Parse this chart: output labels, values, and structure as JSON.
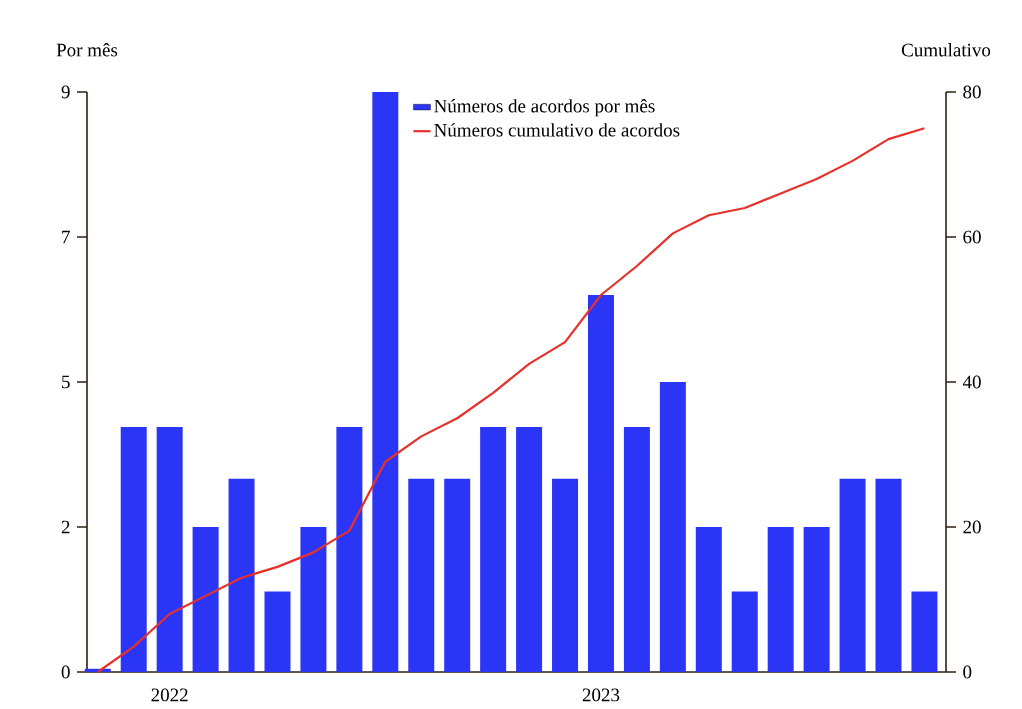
{
  "chart_data": {
    "type": "bar",
    "ylabel": "Por mês",
    "y2label": "Cumulativo",
    "categories": [
      null,
      null,
      "2022",
      null,
      null,
      null,
      null,
      null,
      null,
      null,
      null,
      null,
      null,
      null,
      "2023",
      null,
      null,
      null,
      null,
      null,
      null,
      null,
      null,
      null
    ],
    "series": [
      {
        "name": "Números de acordos por mês",
        "color": "#2b35f5",
        "values": [
          0.05,
          3.8,
          3.8,
          2.25,
          3.0,
          1.25,
          2.25,
          3.8,
          9,
          3.0,
          3.0,
          3.8,
          3.8,
          3.0,
          5.85,
          3.8,
          4.5,
          2.25,
          1.25,
          2.25,
          2.25,
          3.0,
          3.0,
          1.25
        ]
      },
      {
        "name": "Números cumulativo de acordos",
        "type": "line",
        "axis": "y2",
        "color": "#e8302a",
        "values": [
          0,
          3.5,
          8,
          10.5,
          13,
          14.5,
          16.5,
          19.5,
          29,
          32.5,
          35,
          38.5,
          42.5,
          45.5,
          52,
          56,
          60.5,
          63,
          64,
          66,
          68,
          70.5,
          73.5,
          75
        ]
      }
    ],
    "ylim": [
      0,
      9
    ],
    "yticks": [
      0,
      {
        "value": 2.25,
        "label": "2"
      },
      {
        "value": 4.5,
        "label": "5"
      },
      {
        "value": 6.75,
        "label": "7"
      },
      9
    ],
    "y2lim": [
      0,
      80
    ],
    "y2ticks": [
      0,
      20,
      40,
      60,
      80
    ],
    "legend": "top"
  }
}
